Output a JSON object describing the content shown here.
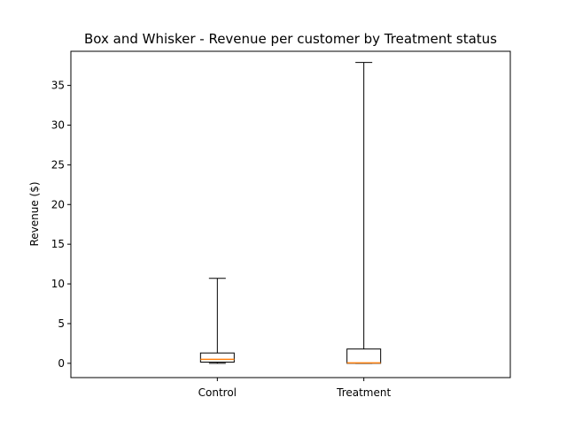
{
  "chart_data": {
    "type": "box",
    "title": "Box and Whisker - Revenue per customer by Treatment status",
    "xlabel": "",
    "ylabel": "Revenue ($)",
    "ylim": [
      -1.8,
      39.3
    ],
    "yticks": [
      0,
      5,
      10,
      15,
      20,
      25,
      30,
      35
    ],
    "grid": false,
    "categories": [
      "Control",
      "Treatment"
    ],
    "boxes": [
      {
        "category": "Control",
        "whisker_low": 0.0,
        "q1": 0.15,
        "median": 0.5,
        "q3": 1.3,
        "whisker_high": 10.7
      },
      {
        "category": "Treatment",
        "whisker_low": 0.0,
        "q1": 0.0,
        "median": 0.05,
        "q3": 1.8,
        "whisker_high": 37.9
      }
    ],
    "colors": {
      "box": "#000000",
      "median": "#ff7f0e"
    }
  }
}
